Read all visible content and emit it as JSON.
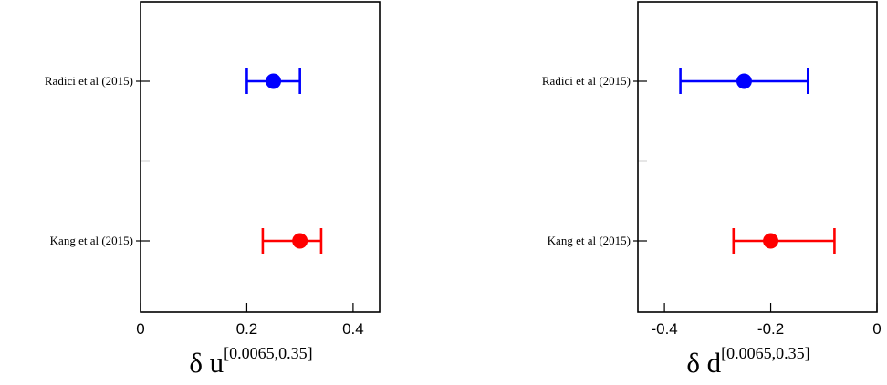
{
  "chart_data": [
    {
      "type": "scatter",
      "subtype": "forest-plot-with-error-bars",
      "categories": [
        "Radici et al (2015)",
        "Kang et al (2015)"
      ],
      "series": [
        {
          "category": "Radici et al (2015)",
          "value": 0.25,
          "err_low": 0.2,
          "err_high": 0.3,
          "color": "#0000ff"
        },
        {
          "category": "Kang et al (2015)",
          "value": 0.3,
          "err_low": 0.23,
          "err_high": 0.34,
          "color": "#ff0000"
        }
      ],
      "xlim": [
        0,
        0.45
      ],
      "xticks": [
        0,
        0.2,
        0.4
      ],
      "xtick_labels": [
        "0",
        "0.2",
        "0.4"
      ],
      "xlabel": "δ u",
      "xlabel_superscript": "[0.0065,0.35]",
      "grid": false
    },
    {
      "type": "scatter",
      "subtype": "forest-plot-with-error-bars",
      "categories": [
        "Radici et al (2015)",
        "Kang et al (2015)"
      ],
      "series": [
        {
          "category": "Radici et al (2015)",
          "value": -0.25,
          "err_low": -0.37,
          "err_high": -0.13,
          "color": "#0000ff"
        },
        {
          "category": "Kang et al (2015)",
          "value": -0.2,
          "err_low": -0.27,
          "err_high": -0.08,
          "color": "#ff0000"
        }
      ],
      "xlim": [
        -0.45,
        0
      ],
      "xticks": [
        -0.4,
        -0.2,
        0
      ],
      "xtick_labels": [
        "-0.4",
        "-0.2",
        "0"
      ],
      "xlabel": "δ d",
      "xlabel_superscript": "[0.0065,0.35]",
      "grid": false
    }
  ]
}
